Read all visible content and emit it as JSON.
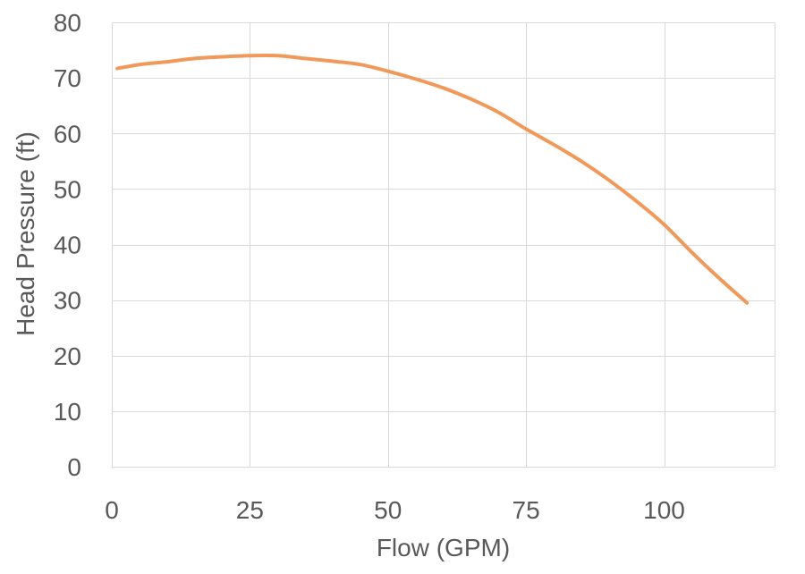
{
  "chart_data": {
    "type": "line",
    "title": "",
    "xlabel": "Flow (GPM)",
    "ylabel": "Head Pressure (ft)",
    "xlim": [
      0,
      120
    ],
    "ylim": [
      0,
      80
    ],
    "xticks": [
      0,
      25,
      50,
      75,
      100
    ],
    "yticks": [
      0,
      10,
      20,
      30,
      40,
      50,
      60,
      70,
      80
    ],
    "grid": true,
    "legend": "none",
    "series": [
      {
        "color": "#f0995a",
        "x": [
          1,
          5,
          10,
          15,
          20,
          25,
          30,
          35,
          40,
          45,
          50,
          55,
          60,
          65,
          70,
          75,
          80,
          85,
          90,
          95,
          100,
          105,
          110,
          115
        ],
        "y": [
          71.7,
          72.4,
          72.9,
          73.5,
          73.8,
          74.0,
          74.0,
          73.5,
          73.0,
          72.4,
          71.2,
          69.8,
          68.2,
          66.2,
          63.8,
          60.8,
          58.0,
          55.0,
          51.6,
          47.8,
          43.6,
          38.6,
          33.9,
          29.5
        ]
      }
    ]
  }
}
